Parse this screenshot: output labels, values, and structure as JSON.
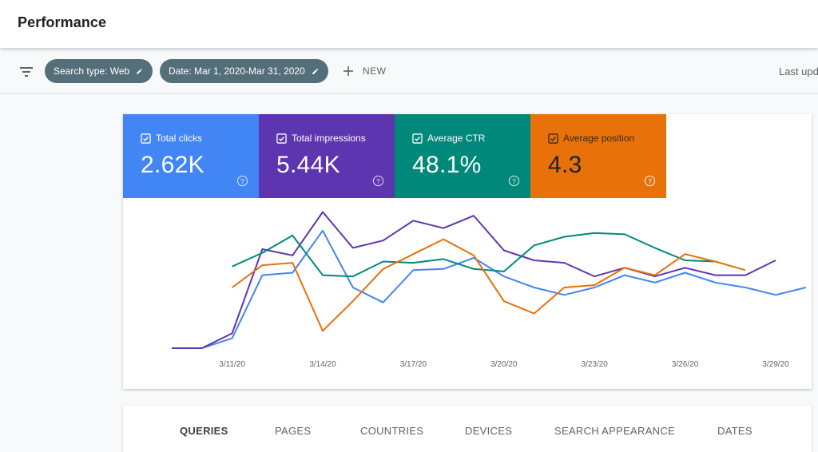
{
  "header": {
    "title": "Performance"
  },
  "filters": {
    "search_type": "Search type: Web",
    "date": "Date: Mar 1, 2020-Mar 31, 2020",
    "new_label": "NEW",
    "last_updated": "Last upd"
  },
  "metrics": [
    {
      "label": "Total clicks",
      "value": "2.62K",
      "color": "#4285f4"
    },
    {
      "label": "Total impressions",
      "value": "5.44K",
      "color": "#5e35b1"
    },
    {
      "label": "Average CTR",
      "value": "48.1%",
      "color": "#00897b"
    },
    {
      "label": "Average position",
      "value": "4.3",
      "color": "#e8710a"
    }
  ],
  "tabs": [
    "QUERIES",
    "PAGES",
    "COUNTRIES",
    "DEVICES",
    "SEARCH APPEARANCE",
    "DATES"
  ],
  "active_tab": "QUERIES",
  "chart_data": {
    "type": "line",
    "x_tick_labels": [
      "3/11/20",
      "3/14/20",
      "3/17/20",
      "3/20/20",
      "3/23/20",
      "3/26/20",
      "3/29/20"
    ],
    "x": [
      "3/9/20",
      "3/10/20",
      "3/11/20",
      "3/12/20",
      "3/13/20",
      "3/14/20",
      "3/15/20",
      "3/16/20",
      "3/17/20",
      "3/18/20",
      "3/19/20",
      "3/20/20",
      "3/21/20",
      "3/22/20",
      "3/23/20",
      "3/24/20",
      "3/25/20",
      "3/26/20",
      "3/27/20",
      "3/28/20",
      "3/29/20",
      "3/30/20",
      "3/31/20"
    ],
    "y_scale": "normalized 0-100 per series",
    "grid": false,
    "series": [
      {
        "color": "#4285f4",
        "values": [
          0,
          0,
          8,
          59,
          61,
          95,
          49,
          37,
          63,
          64,
          73,
          58,
          49,
          43,
          49,
          59,
          53,
          61,
          53,
          49,
          43,
          49,
          null
        ]
      },
      {
        "color": "#5e35b1",
        "values": [
          0,
          0,
          12,
          80,
          75,
          110,
          81,
          87,
          103,
          97,
          107,
          79,
          71,
          69,
          58,
          65,
          58,
          65,
          59,
          59,
          71,
          null,
          null
        ]
      },
      {
        "color": "#00897b",
        "values": [
          null,
          null,
          66,
          77,
          91,
          59,
          58,
          70,
          69,
          72,
          64,
          62,
          83,
          90,
          93,
          92,
          81,
          71,
          70,
          null,
          null,
          null,
          null
        ]
      },
      {
        "color": "#e8710a",
        "values": [
          null,
          null,
          49,
          67,
          69,
          14,
          38,
          64,
          76,
          88,
          75,
          38,
          28,
          49,
          51,
          65,
          59,
          76,
          70,
          63,
          null,
          null,
          null
        ]
      }
    ]
  }
}
